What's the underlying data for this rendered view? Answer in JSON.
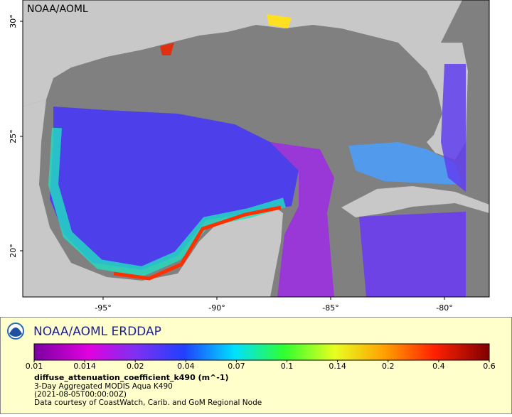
{
  "map": {
    "label": "NOAA/AOML",
    "lat_ticks": [
      "30°",
      "25°",
      "20°"
    ],
    "lon_ticks": [
      "-95°",
      "-90°",
      "-85°",
      "-80°"
    ]
  },
  "legend": {
    "title": "NOAA/AOML ERDDAP",
    "colorbar_ticks": [
      "0.01",
      "0.014",
      "0.02",
      "0.04",
      "0.07",
      "0.1",
      "0.14",
      "0.2",
      "0.4",
      "0.6"
    ],
    "variable": "diffuse_attenuation_coefficient_k490 (m^-1)",
    "lines": [
      "3-Day Aggregated MODIS Aqua K490",
      "(2021-08-05T00:00:00Z)",
      "Data courtesy of CoastWatch, Carib. and GoM Regional Node"
    ]
  }
}
